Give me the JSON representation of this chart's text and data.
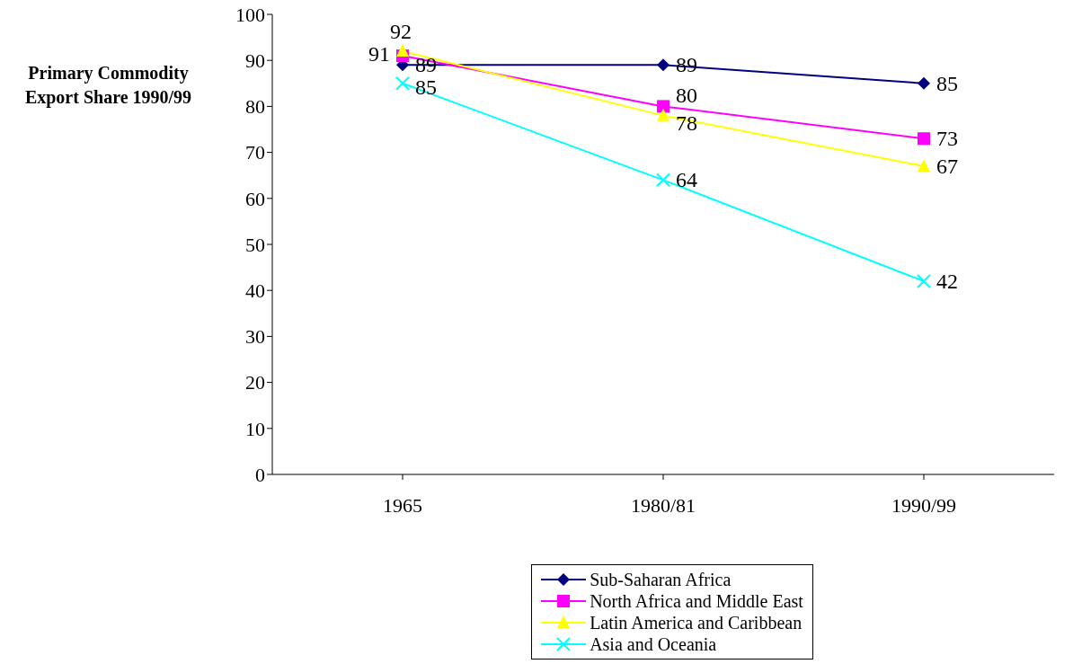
{
  "chart_data": {
    "type": "line",
    "ylabel": "Primary Commodity Export Share 1990/99",
    "categories": [
      "1965",
      "1980/81",
      "1990/99"
    ],
    "series": [
      {
        "name": "Sub-Saharan Africa",
        "color": "#000080",
        "marker": "diamond",
        "values": [
          89,
          89,
          85
        ]
      },
      {
        "name": "North Africa and Middle East",
        "color": "#ff00ff",
        "marker": "square",
        "values": [
          91,
          80,
          73
        ]
      },
      {
        "name": "Latin America and Caribbean",
        "color": "#ffff00",
        "marker": "triangle",
        "values": [
          92,
          78,
          67
        ]
      },
      {
        "name": "Asia and Oceania",
        "color": "#00ffff",
        "marker": "cross",
        "values": [
          85,
          64,
          42
        ]
      }
    ],
    "ylim": [
      0,
      100
    ],
    "yticks": [
      0,
      10,
      20,
      30,
      40,
      50,
      60,
      70,
      80,
      90,
      100
    ],
    "grid": false,
    "legend": "bottom",
    "data_labels": true,
    "line_style": "solid"
  }
}
